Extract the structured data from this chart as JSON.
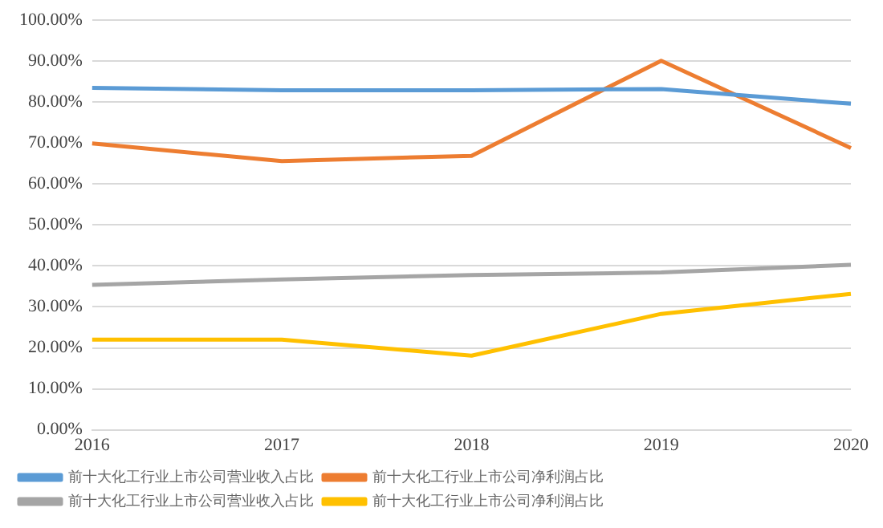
{
  "chart_data": {
    "type": "line",
    "categories": [
      "2016",
      "2017",
      "2018",
      "2019",
      "2020"
    ],
    "series": [
      {
        "name": "前十大化工行业上市公司营业收入占比",
        "color": "#5b9bd5",
        "values": [
          83.5,
          82.9,
          82.9,
          83.2,
          79.6
        ]
      },
      {
        "name": "前十大化工行业上市公司净利润占比",
        "color": "#ed7d31",
        "values": [
          69.9,
          65.6,
          66.9,
          90.1,
          68.8
        ]
      },
      {
        "name": "前十大化工行业上市公司营业收入占比",
        "color": "#a5a5a5",
        "values": [
          35.4,
          36.7,
          37.8,
          38.4,
          40.3
        ]
      },
      {
        "name": "前十大化工行业上市公司净利润占比",
        "color": "#ffc000",
        "values": [
          22.0,
          22.0,
          18.1,
          28.3,
          33.2
        ]
      }
    ],
    "ylim": [
      0,
      100
    ],
    "yticks": [
      {
        "value": 0,
        "label": "0.00%"
      },
      {
        "value": 10,
        "label": "10.00%"
      },
      {
        "value": 20,
        "label": "20.00%"
      },
      {
        "value": 30,
        "label": "30.00%"
      },
      {
        "value": 40,
        "label": "40.00%"
      },
      {
        "value": 50,
        "label": "50.00%"
      },
      {
        "value": 60,
        "label": "60.00%"
      },
      {
        "value": 70,
        "label": "70.00%"
      },
      {
        "value": 80,
        "label": "80.00%"
      },
      {
        "value": 90,
        "label": "90.00%"
      },
      {
        "value": 100,
        "label": "100.00%"
      }
    ],
    "grid": "y",
    "legend": "bottom",
    "marker": "none",
    "line_style": "solid"
  }
}
